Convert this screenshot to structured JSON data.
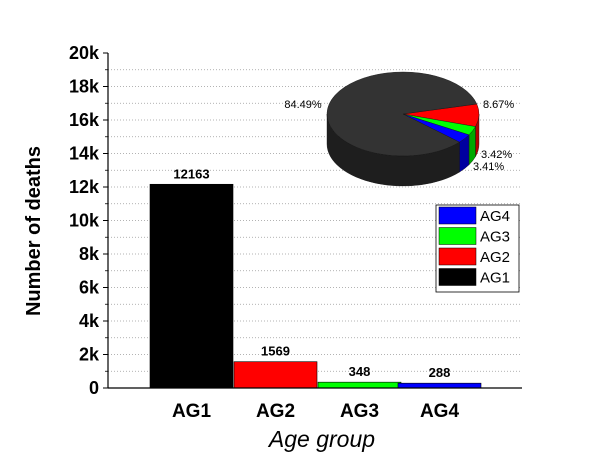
{
  "chart_data": [
    {
      "type": "bar",
      "categories": [
        "AG1",
        "AG2",
        "AG3",
        "AG4"
      ],
      "values": [
        12163,
        1569,
        348,
        288
      ],
      "data_labels": [
        "12163",
        "1569",
        "348",
        "288"
      ],
      "colors": [
        "#000000",
        "#ff0000",
        "#00ff00",
        "#0000ff"
      ],
      "xlabel": "Age group",
      "ylabel": "Number of deaths",
      "ylim": [
        0,
        20000
      ],
      "yticks": [
        0,
        2000,
        4000,
        6000,
        8000,
        10000,
        12000,
        14000,
        16000,
        18000,
        20000
      ],
      "ytick_labels": [
        "0",
        "2k",
        "4k",
        "6k",
        "8k",
        "10k",
        "12k",
        "14k",
        "16k",
        "18k",
        "20k"
      ],
      "grid": true,
      "legend": {
        "placement": "right",
        "entries": [
          {
            "name": "AG4",
            "color": "#0000ff"
          },
          {
            "name": "AG3",
            "color": "#00ff00"
          },
          {
            "name": "AG2",
            "color": "#ff0000"
          },
          {
            "name": "AG1",
            "color": "#000000"
          }
        ]
      }
    },
    {
      "type": "pie",
      "style": "3d",
      "placement": "top-right inset",
      "slices": [
        {
          "category": "AG1",
          "value": 84.49,
          "label": "84.49%",
          "color": "#333333"
        },
        {
          "category": "AG2",
          "value": 8.67,
          "label": "8.67%",
          "color": "#ff0000"
        },
        {
          "category": "AG3",
          "value": 3.42,
          "label": "3.42%",
          "color": "#00ff00"
        },
        {
          "category": "AG4",
          "value": 3.41,
          "label": "3.41%",
          "color": "#0000ff"
        }
      ]
    }
  ]
}
